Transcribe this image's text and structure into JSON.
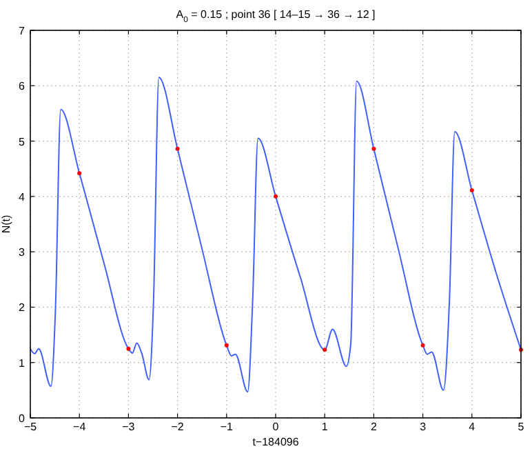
{
  "chart_data": {
    "type": "line",
    "title": "A$_{0}$ = 0.15 ; point 36 [ 14–15 → 36 → 12 ]",
    "xlabel": "t−184096",
    "ylabel": "N(t)",
    "xlim": [
      -5,
      5
    ],
    "ylim": [
      0,
      7
    ],
    "xticks": [
      -5,
      -4,
      -3,
      -2,
      -1,
      0,
      1,
      2,
      3,
      4,
      5
    ],
    "yticks": [
      0,
      1,
      2,
      3,
      4,
      5,
      6,
      7
    ],
    "grid": true,
    "line_style": "solid",
    "series": [
      {
        "color": "#4060ff",
        "marker": "none",
        "x": [
          -5,
          -4.91,
          -4.83,
          -4.58,
          -4.49,
          -4.38,
          -4.0,
          -3.5,
          -3.0,
          -2.92,
          -2.83,
          -2.73,
          -2.58,
          -2.49,
          -2.38,
          -2.0,
          -1.5,
          -1.0,
          -0.9,
          -0.82,
          -0.57,
          -0.47,
          -0.36,
          0,
          0.5,
          1.0,
          1.16,
          1.44,
          1.53,
          1.65,
          2.0,
          2.5,
          3.0,
          3.09,
          3.18,
          3.42,
          3.54,
          3.65,
          4.0,
          4.5,
          5.0
        ],
        "values": [
          1.25,
          1.16,
          1.25,
          0.57,
          1.9,
          5.57,
          4.42,
          2.8,
          1.25,
          1.17,
          1.35,
          1.17,
          0.69,
          2.08,
          6.15,
          4.86,
          3.05,
          1.31,
          1.12,
          1.15,
          0.47,
          2.08,
          5.05,
          4.0,
          2.55,
          1.23,
          1.6,
          0.93,
          1.33,
          6.08,
          4.86,
          3.05,
          1.31,
          1.15,
          1.19,
          0.5,
          2.08,
          5.17,
          4.11,
          2.6,
          1.23
        ]
      },
      {
        "type": "scatter",
        "color": "#ff0000",
        "marker": "circle",
        "x": [
          -4,
          -3,
          -2,
          -1,
          0,
          1,
          2,
          3,
          4,
          5
        ],
        "values": [
          4.42,
          1.25,
          4.86,
          1.31,
          4.0,
          1.23,
          4.86,
          1.31,
          4.11,
          1.23
        ]
      }
    ]
  }
}
